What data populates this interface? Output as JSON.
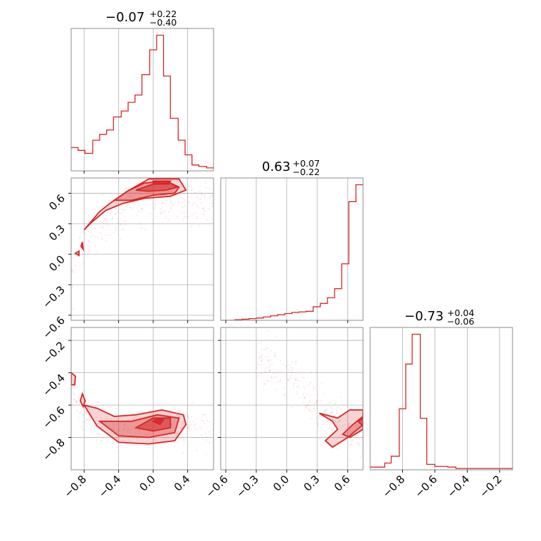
{
  "colors": {
    "accent": "#d62728",
    "grid": "#b0b0b0",
    "frame": "#808080"
  },
  "chart_data": {
    "type": "corner",
    "parameters": [
      {
        "median": "−0.07",
        "plus": "+0.22",
        "minus": "−0.40"
      },
      {
        "median": "0.63",
        "plus": "+0.07",
        "minus": "−0.22"
      },
      {
        "median": "−0.73",
        "plus": "+0.04",
        "minus": "−0.06"
      }
    ],
    "axes": {
      "p0": {
        "range": [
          -0.95,
          0.7
        ],
        "ticks": [
          -0.8,
          -0.4,
          0.0,
          0.4
        ],
        "tick_labels": [
          "−0.8",
          "−0.4",
          "0.0",
          "0.4"
        ]
      },
      "p1": {
        "range": [
          -0.65,
          0.75
        ],
        "ticks": [
          -0.6,
          -0.3,
          0.0,
          0.3,
          0.6
        ],
        "tick_labels": [
          "−0.6",
          "−0.3",
          "0.0",
          "0.3",
          "0.6"
        ]
      },
      "p2": {
        "range": [
          -1.0,
          -0.12
        ],
        "ticks": [
          -0.8,
          -0.6,
          -0.4,
          -0.2
        ],
        "tick_labels": [
          "−0.8",
          "−0.6",
          "−0.4",
          "−0.2"
        ]
      }
    },
    "histograms": [
      {
        "param": "p0",
        "edges": [
          -0.95,
          -0.87,
          -0.79,
          -0.7,
          -0.62,
          -0.54,
          -0.46,
          -0.37,
          -0.29,
          -0.21,
          -0.13,
          -0.04,
          0.04,
          0.12,
          0.2,
          0.29,
          0.37,
          0.45,
          0.53,
          0.62,
          0.7
        ],
        "counts": [
          0.16,
          0.14,
          0.12,
          0.21,
          0.25,
          0.28,
          0.37,
          0.41,
          0.47,
          0.52,
          0.66,
          0.83,
          0.93,
          0.65,
          0.36,
          0.21,
          0.11,
          0.04,
          0.03,
          0.02
        ]
      },
      {
        "param": "p1",
        "edges": [
          -0.65,
          -0.58,
          -0.51,
          -0.44,
          -0.37,
          -0.3,
          -0.23,
          -0.16,
          -0.09,
          -0.02,
          0.05,
          0.12,
          0.19,
          0.26,
          0.33,
          0.4,
          0.47,
          0.54,
          0.61,
          0.68,
          0.75
        ],
        "counts": [
          0.0,
          0.0,
          0.005,
          0.01,
          0.015,
          0.02,
          0.03,
          0.04,
          0.05,
          0.06,
          0.07,
          0.075,
          0.08,
          0.12,
          0.15,
          0.2,
          0.28,
          0.5,
          1.05,
          1.2
        ]
      },
      {
        "param": "p2",
        "edges": [
          -1.0,
          -0.96,
          -0.91,
          -0.87,
          -0.82,
          -0.78,
          -0.74,
          -0.69,
          -0.65,
          -0.6,
          -0.56,
          -0.52,
          -0.47,
          -0.43,
          -0.38,
          -0.34,
          -0.3,
          -0.25,
          -0.21,
          -0.16,
          -0.12
        ],
        "counts": [
          0.02,
          0.02,
          0.05,
          0.1,
          0.45,
          0.78,
          1.0,
          0.38,
          0.04,
          0.025,
          0.025,
          0.02,
          0.01,
          0.01,
          0.01,
          0.01,
          0.01,
          0.01,
          0.01,
          0.01
        ]
      }
    ],
    "contours_2d": [
      {
        "x": "p0",
        "y": "p1",
        "levels": [
          [
            [
              -0.8,
              0.24
            ],
            [
              -0.72,
              0.32
            ],
            [
              -0.62,
              0.42
            ],
            [
              -0.5,
              0.5
            ],
            [
              -0.3,
              0.62
            ],
            [
              -0.05,
              0.74
            ],
            [
              0.3,
              0.74
            ],
            [
              0.38,
              0.63
            ],
            [
              0.2,
              0.57
            ],
            [
              -0.1,
              0.55
            ],
            [
              -0.35,
              0.5
            ],
            [
              -0.55,
              0.43
            ],
            [
              -0.72,
              0.31
            ],
            [
              -0.8,
              0.24
            ]
          ],
          [
            [
              -0.45,
              0.53
            ],
            [
              -0.3,
              0.62
            ],
            [
              -0.1,
              0.7
            ],
            [
              0.15,
              0.72
            ],
            [
              0.3,
              0.66
            ],
            [
              0.25,
              0.6
            ],
            [
              0.0,
              0.58
            ],
            [
              -0.25,
              0.53
            ],
            [
              -0.45,
              0.53
            ]
          ],
          [
            [
              -0.2,
              0.63
            ],
            [
              0.0,
              0.69
            ],
            [
              0.2,
              0.7
            ],
            [
              0.28,
              0.66
            ],
            [
              0.15,
              0.63
            ],
            [
              -0.05,
              0.62
            ],
            [
              -0.2,
              0.63
            ]
          ],
          [
            [
              0.0,
              0.72
            ],
            [
              0.2,
              0.72
            ],
            [
              0.18,
              0.69
            ],
            [
              0.0,
              0.69
            ],
            [
              0.0,
              0.72
            ]
          ]
        ]
      },
      {
        "x": "p0",
        "y": "p2",
        "levels": [
          [
            [
              -0.8,
              -0.6
            ],
            [
              -0.65,
              -0.73
            ],
            [
              -0.4,
              -0.83
            ],
            [
              -0.05,
              -0.84
            ],
            [
              0.25,
              -0.82
            ],
            [
              0.38,
              -0.72
            ],
            [
              0.35,
              -0.66
            ],
            [
              0.1,
              -0.63
            ],
            [
              -0.2,
              -0.66
            ],
            [
              -0.45,
              -0.67
            ],
            [
              -0.65,
              -0.62
            ],
            [
              -0.8,
              -0.6
            ]
          ],
          [
            [
              -0.62,
              -0.7
            ],
            [
              -0.4,
              -0.79
            ],
            [
              -0.05,
              -0.8
            ],
            [
              0.25,
              -0.77
            ],
            [
              0.3,
              -0.68
            ],
            [
              0.05,
              -0.66
            ],
            [
              -0.25,
              -0.7
            ],
            [
              -0.5,
              -0.7
            ],
            [
              -0.62,
              -0.7
            ]
          ],
          [
            [
              -0.2,
              -0.74
            ],
            [
              0.0,
              -0.76
            ],
            [
              0.2,
              -0.74
            ],
            [
              0.2,
              -0.68
            ],
            [
              0.0,
              -0.68
            ],
            [
              -0.2,
              -0.74
            ]
          ],
          [
            [
              0.0,
              -0.7
            ],
            [
              0.08,
              -0.72
            ],
            [
              0.12,
              -0.69
            ],
            [
              0.05,
              -0.68
            ],
            [
              0.0,
              -0.7
            ]
          ]
        ]
      },
      {
        "x": "p1",
        "y": "p2",
        "levels": [
          [
            [
              0.32,
              -0.65
            ],
            [
              0.45,
              -0.7
            ],
            [
              0.5,
              -0.75
            ],
            [
              0.38,
              -0.82
            ],
            [
              0.45,
              -0.86
            ],
            [
              0.6,
              -0.8
            ],
            [
              0.75,
              -0.72
            ],
            [
              0.75,
              -0.63
            ],
            [
              0.62,
              -0.63
            ],
            [
              0.5,
              -0.68
            ],
            [
              0.32,
              -0.65
            ]
          ],
          [
            [
              0.55,
              -0.78
            ],
            [
              0.65,
              -0.72
            ],
            [
              0.75,
              -0.67
            ],
            [
              0.75,
              -0.75
            ],
            [
              0.62,
              -0.8
            ],
            [
              0.55,
              -0.78
            ]
          ],
          [
            [
              0.7,
              -0.7
            ],
            [
              0.75,
              -0.68
            ],
            [
              0.75,
              -0.73
            ],
            [
              0.7,
              -0.7
            ]
          ]
        ]
      }
    ]
  }
}
